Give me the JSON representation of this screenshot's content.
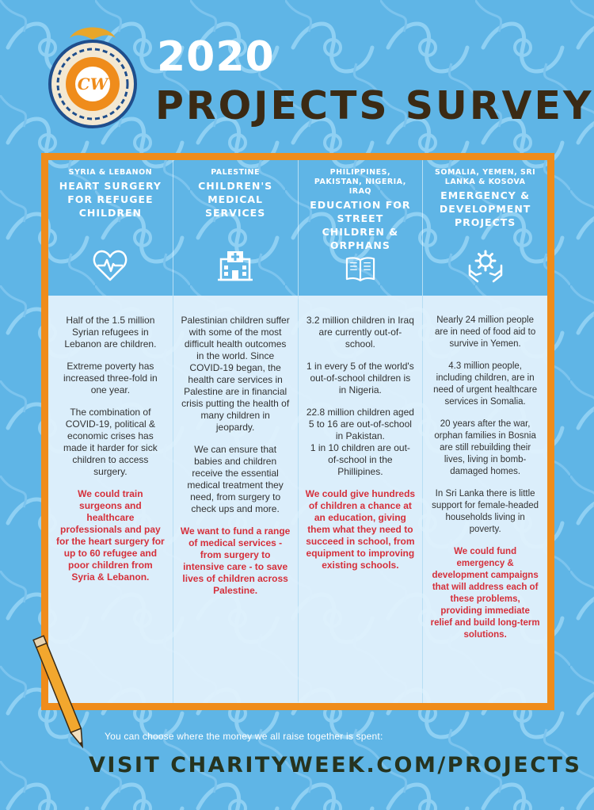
{
  "header": {
    "logo_text": "CW",
    "year": "2020",
    "title": "PROJECTS SURVEY"
  },
  "columns": [
    {
      "location": "SYRIA & LEBANON",
      "title": "HEART SURGERY FOR REFUGEE CHILDREN",
      "icon": "heart-pulse-icon",
      "paragraphs": [
        "Half of the 1.5 million Syrian refugees in Lebanon are children.",
        "Extreme poverty has increased three-fold in one year.",
        "The combination of COVID-19, political & economic crises has made it harder for sick children to access surgery."
      ],
      "appeal": "We could train surgeons and healthcare professionals and pay for the heart surgery for up to 60 refugee and poor children from Syria & Lebanon."
    },
    {
      "location": "PALESTINE",
      "title": "CHILDREN'S MEDICAL SERVICES",
      "icon": "hospital-icon",
      "paragraphs": [
        "Palestinian children suffer with some of the most difficult health outcomes in the world. Since COVID-19 began, the health care services in Palestine are in financial crisis putting the health of many children in jeopardy.",
        "We can ensure that babies and children receive the essential medical treatment they need, from surgery to check ups and more."
      ],
      "appeal": "We want to fund a range of medical services - from surgery to intensive care - to save lives of children across Palestine."
    },
    {
      "location": "PHILIPPINES, PAKISTAN, NIGERIA, IRAQ",
      "title": "EDUCATION FOR STREET CHILDREN & ORPHANS",
      "icon": "open-book-icon",
      "paragraphs": [
        "3.2 million children in Iraq are currently out-of-school.",
        "1 in every 5 of the world's out-of-school children is in Nigeria.",
        "22.8 million children aged 5 to 16 are out-of-school in Pakistan.",
        "1 in 10 children are out-of-school in the Phillipines."
      ],
      "appeal": "We could give hundreds of children a chance at an education, giving them what they need to succeed in school, from equipment to improving existing schools."
    },
    {
      "location": "SOMALIA, YEMEN, SRI LANKA & KOSOVA",
      "title": "EMERGENCY & DEVELOPMENT PROJECTS",
      "icon": "hands-gear-icon",
      "paragraphs": [
        "Nearly 24 million people are in need of food aid to survive in Yemen.",
        "4.3 million people, including children, are in need of urgent healthcare services in Somalia.",
        "20 years after the war, orphan families in Bosnia are still rebuilding their lives, living in bomb-damaged homes.",
        "In Sri Lanka there is little support for female-headed households living in poverty."
      ],
      "appeal": "We could fund emergency & development campaigns that will address each of these problems, providing immediate relief and build long-term solutions."
    }
  ],
  "footer": {
    "line": "You can choose where the money we all raise together is spent:",
    "cta": "VISIT CHARITYWEEK.COM/PROJECTS"
  },
  "colors": {
    "background": "#5fb5e6",
    "frame": "#ef8c1b",
    "title_dark": "#3b2a14",
    "appeal_red": "#d5303b",
    "panel": "#e2f1fc"
  }
}
